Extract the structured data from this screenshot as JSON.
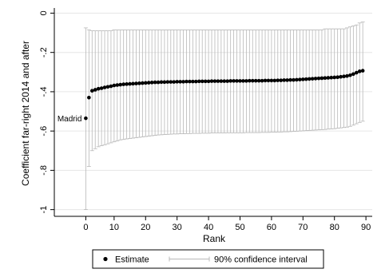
{
  "chart_data": {
    "type": "scatter",
    "xlabel": "Rank",
    "ylabel": "Coefficient far-right 2014 and after",
    "xlim": [
      -9,
      92
    ],
    "ylim": [
      -1.03,
      0.01
    ],
    "x_ticks": [
      10,
      20,
      30,
      40,
      50,
      60,
      70,
      80,
      90
    ],
    "y_ticks": [
      0,
      -0.2,
      -0.4,
      -0.6,
      -0.8,
      -1
    ],
    "y_tick_labels": [
      "0",
      "-.2",
      "-.4",
      "-.6",
      "-.8",
      "-1"
    ],
    "x_zero_label": "0",
    "grid": "horizontal",
    "annotation": {
      "text": "Madrid",
      "x": 1,
      "y": -0.535
    },
    "legend": {
      "placement": "bottom",
      "estimate": "Estimate",
      "ci": "90% confidence interval"
    },
    "colors": {
      "point": "#000000",
      "ci": "#b8b8b8",
      "grid": "#e6e6e6"
    },
    "series": [
      {
        "name": "Estimate",
        "x": [
          1,
          2,
          3,
          4,
          5,
          6,
          7,
          8,
          9,
          10,
          11,
          12,
          13,
          14,
          15,
          16,
          17,
          18,
          19,
          20,
          21,
          22,
          23,
          24,
          25,
          26,
          27,
          28,
          29,
          30,
          31,
          32,
          33,
          34,
          35,
          36,
          37,
          38,
          39,
          40,
          41,
          42,
          43,
          44,
          45,
          46,
          47,
          48,
          49,
          50,
          51,
          52,
          53,
          54,
          55,
          56,
          57,
          58,
          59,
          60,
          61,
          62,
          63,
          64,
          65,
          66,
          67,
          68,
          69,
          70,
          71,
          72,
          73,
          74,
          75,
          76,
          77,
          78,
          79,
          80,
          81,
          82,
          83,
          84,
          85,
          86,
          87,
          88,
          89
        ],
        "y": [
          -0.535,
          -0.43,
          -0.395,
          -0.39,
          -0.385,
          -0.382,
          -0.378,
          -0.375,
          -0.372,
          -0.368,
          -0.366,
          -0.364,
          -0.362,
          -0.361,
          -0.36,
          -0.359,
          -0.358,
          -0.357,
          -0.356,
          -0.355,
          -0.354,
          -0.353,
          -0.352,
          -0.352,
          -0.351,
          -0.351,
          -0.35,
          -0.35,
          -0.35,
          -0.349,
          -0.349,
          -0.349,
          -0.348,
          -0.348,
          -0.348,
          -0.348,
          -0.347,
          -0.347,
          -0.347,
          -0.347,
          -0.346,
          -0.346,
          -0.346,
          -0.346,
          -0.346,
          -0.346,
          -0.345,
          -0.345,
          -0.345,
          -0.345,
          -0.345,
          -0.345,
          -0.344,
          -0.344,
          -0.344,
          -0.344,
          -0.344,
          -0.343,
          -0.343,
          -0.343,
          -0.343,
          -0.342,
          -0.342,
          -0.341,
          -0.341,
          -0.34,
          -0.34,
          -0.339,
          -0.338,
          -0.337,
          -0.336,
          -0.335,
          -0.334,
          -0.333,
          -0.332,
          -0.331,
          -0.33,
          -0.329,
          -0.328,
          -0.327,
          -0.326,
          -0.324,
          -0.322,
          -0.32,
          -0.316,
          -0.31,
          -0.303,
          -0.296,
          -0.293
        ],
        "ci_low": [
          -1.0,
          -0.78,
          -0.7,
          -0.69,
          -0.68,
          -0.675,
          -0.67,
          -0.665,
          -0.66,
          -0.655,
          -0.65,
          -0.645,
          -0.643,
          -0.64,
          -0.638,
          -0.636,
          -0.634,
          -0.632,
          -0.63,
          -0.628,
          -0.626,
          -0.624,
          -0.622,
          -0.62,
          -0.619,
          -0.618,
          -0.617,
          -0.616,
          -0.615,
          -0.615,
          -0.614,
          -0.614,
          -0.613,
          -0.613,
          -0.612,
          -0.612,
          -0.612,
          -0.611,
          -0.611,
          -0.611,
          -0.61,
          -0.61,
          -0.61,
          -0.61,
          -0.61,
          -0.609,
          -0.609,
          -0.609,
          -0.609,
          -0.609,
          -0.609,
          -0.608,
          -0.608,
          -0.608,
          -0.608,
          -0.608,
          -0.607,
          -0.607,
          -0.607,
          -0.606,
          -0.606,
          -0.605,
          -0.605,
          -0.604,
          -0.604,
          -0.603,
          -0.602,
          -0.601,
          -0.6,
          -0.599,
          -0.598,
          -0.597,
          -0.596,
          -0.595,
          -0.594,
          -0.593,
          -0.592,
          -0.59,
          -0.589,
          -0.588,
          -0.586,
          -0.584,
          -0.582,
          -0.58,
          -0.576,
          -0.57,
          -0.563,
          -0.556,
          -0.55
        ],
        "ci_high": [
          -0.075,
          -0.085,
          -0.09,
          -0.09,
          -0.09,
          -0.09,
          -0.09,
          -0.09,
          -0.09,
          -0.085,
          -0.085,
          -0.085,
          -0.085,
          -0.085,
          -0.085,
          -0.085,
          -0.085,
          -0.085,
          -0.085,
          -0.085,
          -0.085,
          -0.085,
          -0.085,
          -0.085,
          -0.085,
          -0.085,
          -0.085,
          -0.085,
          -0.085,
          -0.085,
          -0.085,
          -0.085,
          -0.085,
          -0.085,
          -0.085,
          -0.085,
          -0.085,
          -0.085,
          -0.085,
          -0.085,
          -0.085,
          -0.085,
          -0.085,
          -0.085,
          -0.085,
          -0.085,
          -0.085,
          -0.085,
          -0.085,
          -0.085,
          -0.085,
          -0.085,
          -0.085,
          -0.085,
          -0.085,
          -0.085,
          -0.085,
          -0.085,
          -0.085,
          -0.085,
          -0.085,
          -0.085,
          -0.085,
          -0.085,
          -0.085,
          -0.085,
          -0.085,
          -0.085,
          -0.085,
          -0.085,
          -0.085,
          -0.085,
          -0.085,
          -0.085,
          -0.085,
          -0.085,
          -0.08,
          -0.08,
          -0.08,
          -0.08,
          -0.08,
          -0.08,
          -0.08,
          -0.075,
          -0.07,
          -0.065,
          -0.06,
          -0.05,
          -0.045
        ]
      }
    ]
  }
}
